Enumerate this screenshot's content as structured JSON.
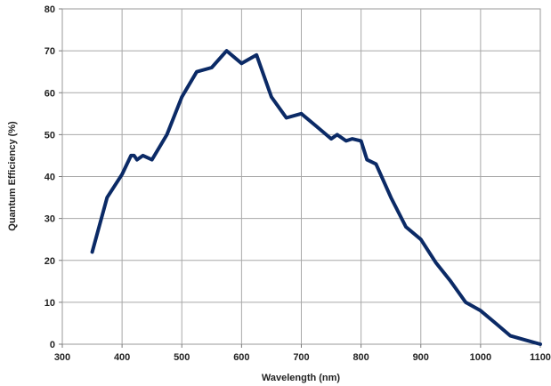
{
  "chart_data": {
    "type": "line",
    "title": "",
    "xlabel": "Wavelength (nm)",
    "ylabel": "Quantum Efficiency (%)",
    "xlim": [
      300,
      1100
    ],
    "ylim": [
      0,
      80
    ],
    "xticks": [
      300,
      400,
      500,
      600,
      700,
      800,
      900,
      1000,
      1100
    ],
    "yticks": [
      0,
      10,
      20,
      30,
      40,
      50,
      60,
      70,
      80
    ],
    "grid": true,
    "legend": "none",
    "line_color": "#0b2a66",
    "series": [
      {
        "x": [
          350,
          375,
          400,
          415,
          420,
          425,
          435,
          450,
          475,
          500,
          525,
          550,
          575,
          600,
          625,
          650,
          675,
          700,
          725,
          750,
          760,
          775,
          785,
          800,
          810,
          825,
          850,
          875,
          900,
          925,
          950,
          975,
          1000,
          1025,
          1050,
          1075,
          1100
        ],
        "y": [
          22,
          35,
          40.5,
          45,
          45,
          44,
          45,
          44,
          50,
          59,
          65,
          66,
          70,
          67,
          69,
          59,
          54,
          55,
          52,
          49,
          50,
          48.5,
          49,
          48.5,
          44,
          43,
          35,
          28,
          25,
          19.5,
          15,
          10,
          8,
          5,
          2,
          1,
          0
        ]
      }
    ]
  }
}
